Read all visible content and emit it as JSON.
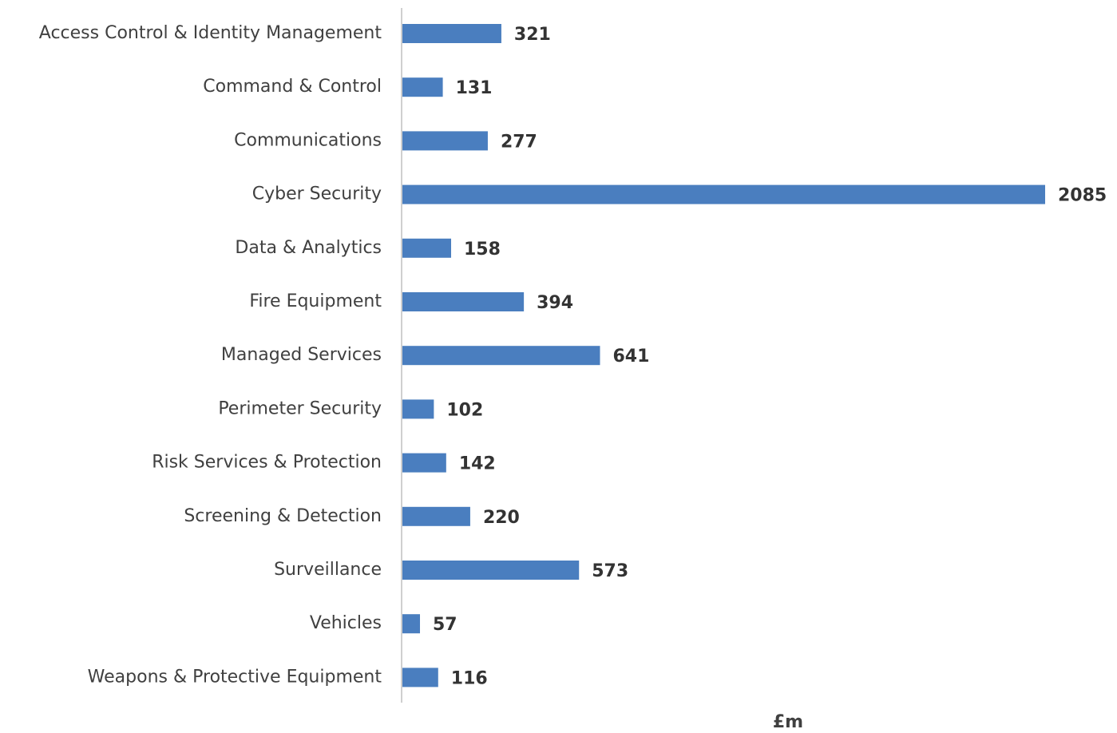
{
  "chart_data": {
    "type": "bar",
    "orientation": "horizontal",
    "categories": [
      "Access Control & Identity Management",
      "Command & Control",
      "Communications",
      "Cyber Security",
      "Data & Analytics",
      "Fire Equipment",
      "Managed Services",
      "Perimeter Security",
      "Risk Services & Protection",
      "Screening & Detection",
      "Surveillance",
      "Vehicles",
      "Weapons & Protective Equipment"
    ],
    "values": [
      321,
      131,
      277,
      2085,
      158,
      394,
      641,
      102,
      142,
      220,
      573,
      57,
      116
    ],
    "color": "#4a7ebf",
    "xlim": [
      0,
      2085
    ],
    "xlabel": "£m"
  }
}
